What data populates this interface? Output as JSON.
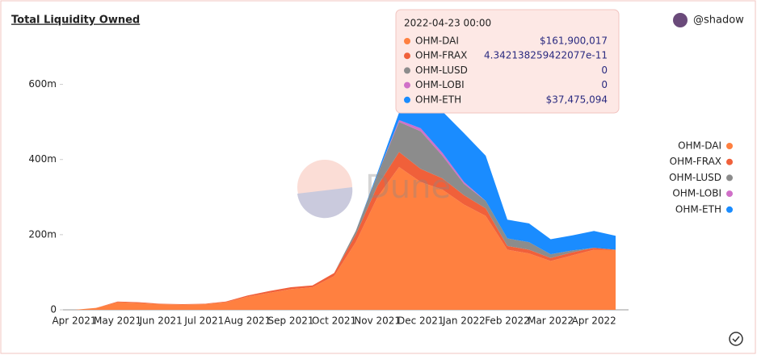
{
  "title": "Total Liquidity Owned",
  "author": "@shadow",
  "watermark": "Dune",
  "chart_data": {
    "type": "stacked_area",
    "categories": [
      "Apr 2021",
      null,
      "May 2021",
      null,
      "Jun 2021",
      null,
      "Jul 2021",
      null,
      "Aug 2021",
      null,
      "Sep 2021",
      null,
      "Oct 2021",
      null,
      "Nov 2021",
      null,
      "Dec 2021",
      null,
      "Jan 2022",
      null,
      "Feb 2022",
      null,
      "Mar 2022",
      null,
      "Apr 2022",
      null
    ],
    "series": [
      {
        "name": "OHM-DAI",
        "color": "#ff8040",
        "values": [
          0,
          5000000,
          20000000,
          18000000,
          15000000,
          14000000,
          15000000,
          20000000,
          35000000,
          45000000,
          55000000,
          60000000,
          90000000,
          180000000,
          300000000,
          380000000,
          340000000,
          320000000,
          280000000,
          250000000,
          160000000,
          150000000,
          130000000,
          145000000,
          160000000,
          160000000
        ]
      },
      {
        "name": "OHM-FRAX",
        "color": "#f0603a",
        "values": [
          0,
          0,
          2000000,
          2000000,
          1000000,
          1000000,
          1000000,
          2000000,
          3000000,
          5000000,
          5000000,
          5000000,
          8000000,
          20000000,
          30000000,
          40000000,
          35000000,
          30000000,
          25000000,
          20000000,
          10000000,
          10000000,
          8000000,
          8000000,
          5000000,
          0
        ]
      },
      {
        "name": "OHM-LUSD",
        "color": "#8c8c8c",
        "values": [
          0,
          0,
          0,
          0,
          0,
          0,
          0,
          0,
          0,
          0,
          0,
          0,
          0,
          10000000,
          30000000,
          80000000,
          100000000,
          60000000,
          30000000,
          20000000,
          20000000,
          20000000,
          10000000,
          5000000,
          0,
          0
        ]
      },
      {
        "name": "OHM-LOBI",
        "color": "#d070c8",
        "values": [
          0,
          0,
          0,
          0,
          0,
          0,
          0,
          0,
          0,
          0,
          0,
          0,
          0,
          0,
          0,
          5000000,
          8000000,
          8000000,
          5000000,
          0,
          0,
          0,
          0,
          0,
          0,
          0
        ]
      },
      {
        "name": "OHM-ETH",
        "color": "#1a8cff",
        "values": [
          0,
          0,
          0,
          0,
          0,
          0,
          0,
          0,
          0,
          0,
          0,
          0,
          0,
          0,
          5000000,
          20000000,
          70000000,
          110000000,
          130000000,
          120000000,
          50000000,
          50000000,
          40000000,
          40000000,
          45000000,
          37000000
        ]
      }
    ],
    "ylim": [
      0,
      700000000
    ],
    "yticks": [
      0,
      {
        "value": 200000000,
        "label": "200m"
      },
      {
        "value": 400000000,
        "label": "400m"
      },
      {
        "value": 600000000,
        "label": "600m"
      }
    ],
    "legend": "right",
    "tooltip": {
      "title": "2022-04-23 00:00",
      "rows": [
        {
          "name": "OHM-DAI",
          "value": 161900017,
          "value_label": "$161,900,017"
        },
        {
          "name": "OHM-FRAX",
          "value": 4.342138259422077e-11
        },
        {
          "name": "OHM-LUSD",
          "value": 0
        },
        {
          "name": "OHM-LOBI",
          "value": 0
        },
        {
          "name": "OHM-ETH",
          "value": 37475094,
          "value_label": "$37,475,094"
        }
      ]
    }
  }
}
